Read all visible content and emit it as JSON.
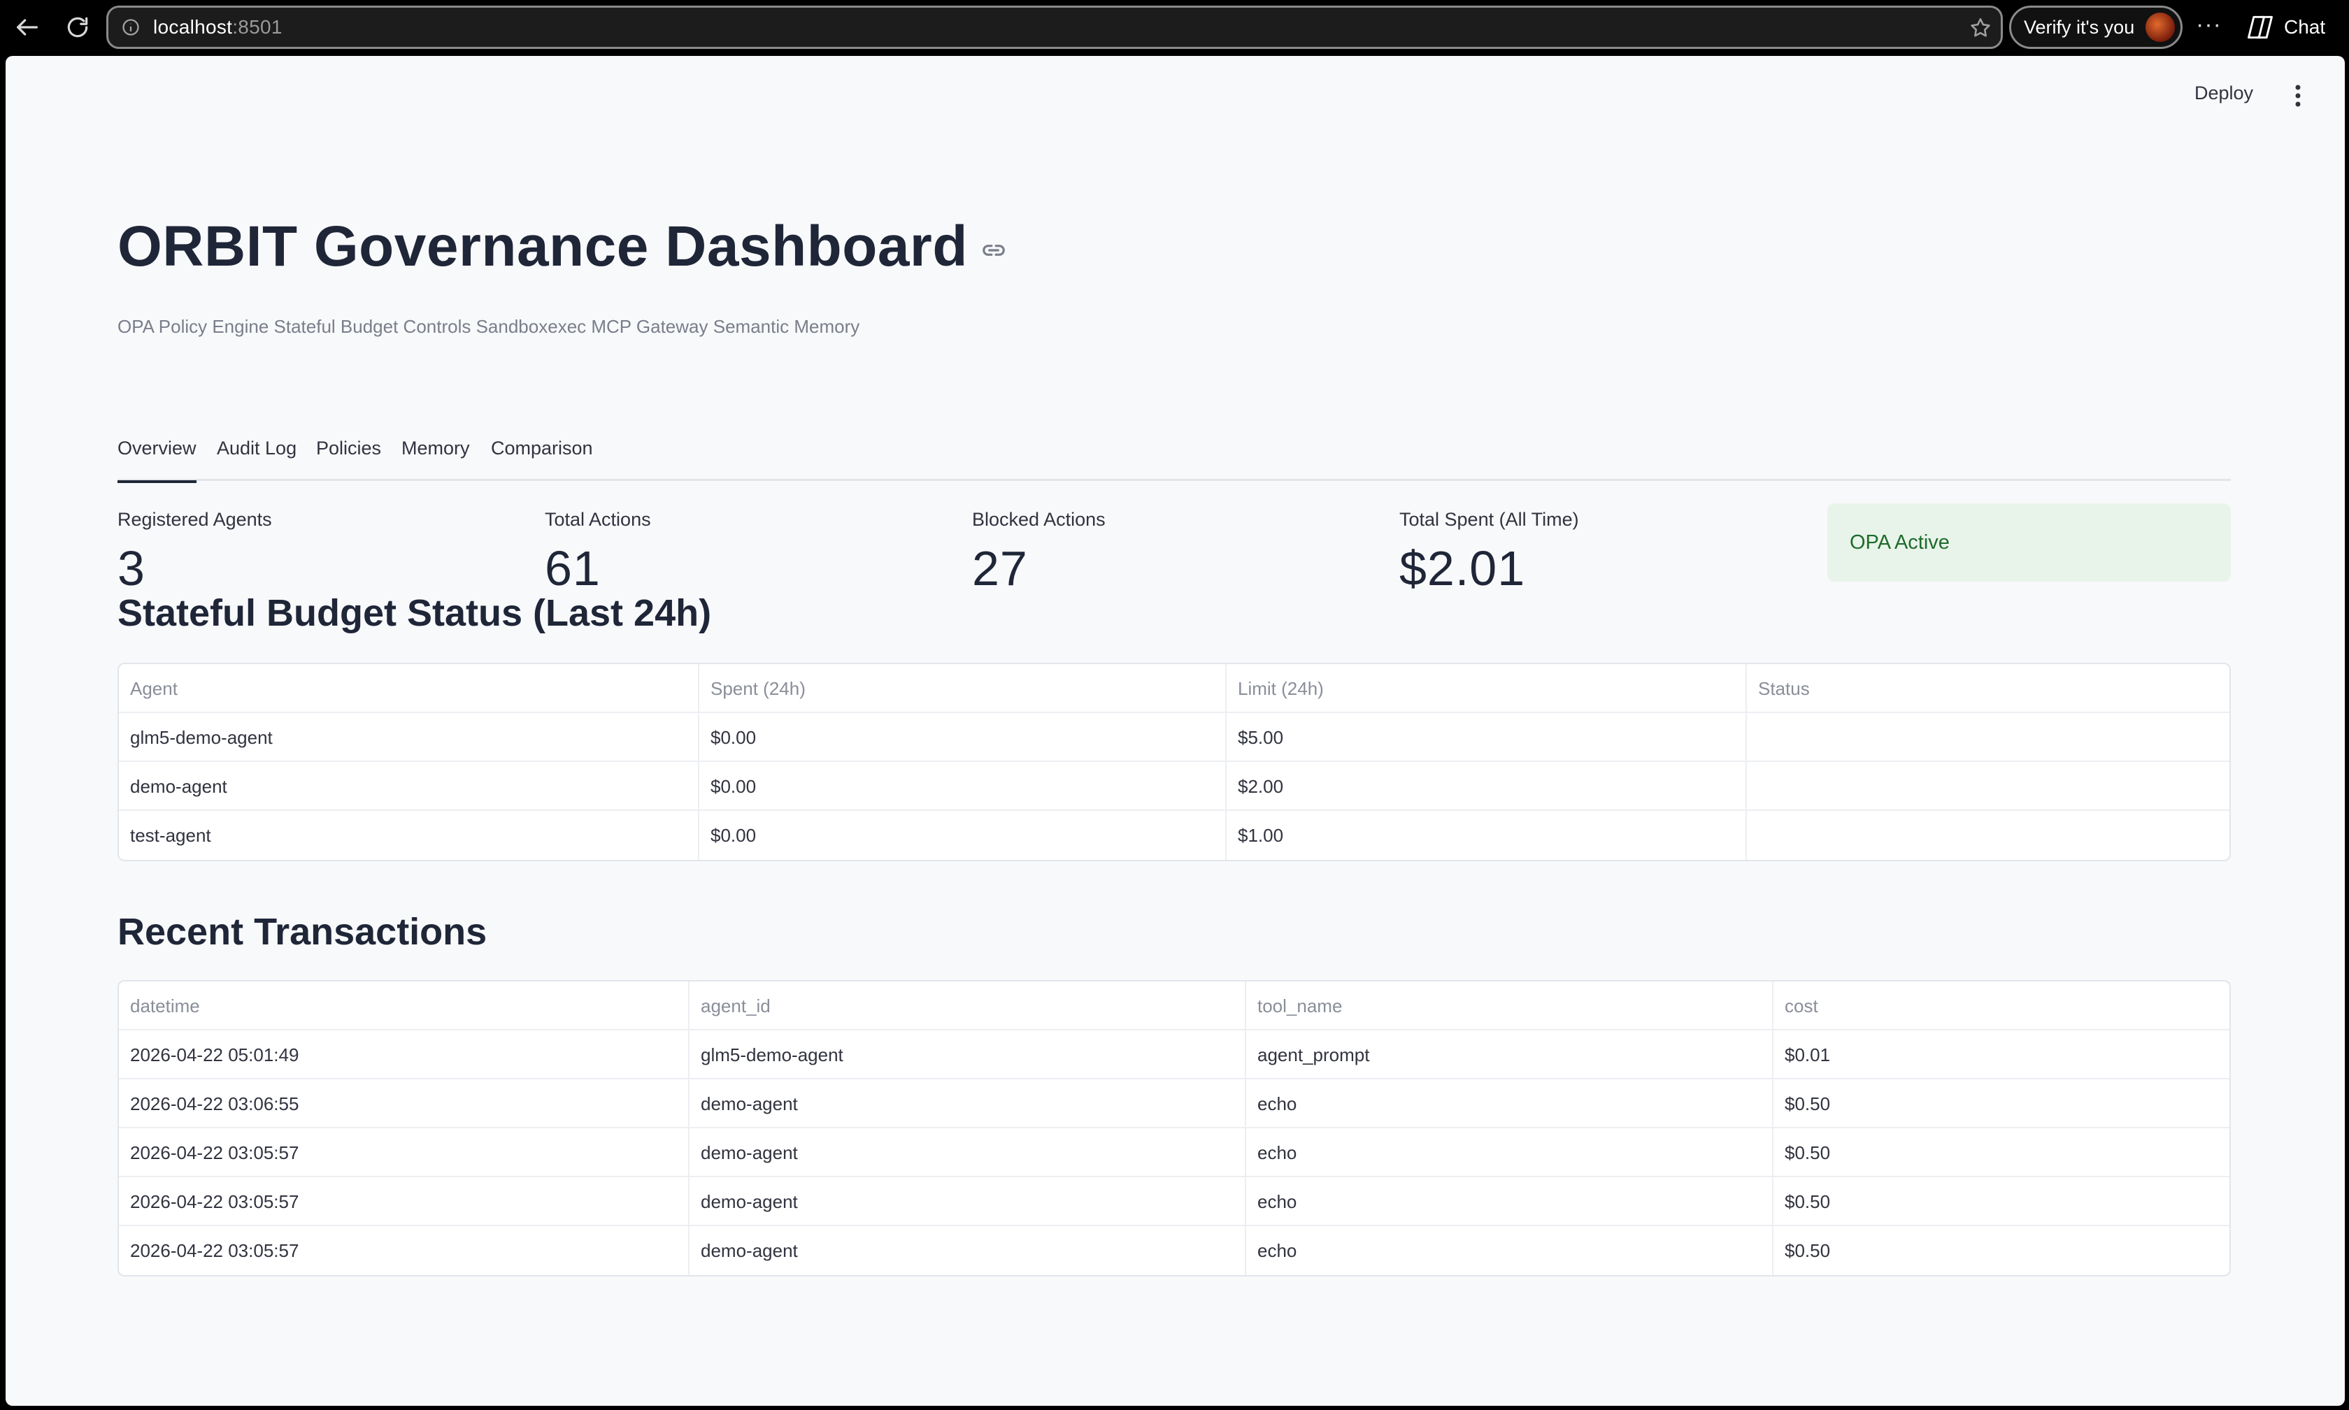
{
  "browser": {
    "url_host": "localhost",
    "url_port": ":8501",
    "verify_label": "Verify it's you",
    "more_label": "···",
    "chat_label": "Chat"
  },
  "toolbar": {
    "deploy_label": "Deploy"
  },
  "header": {
    "title": "ORBIT Governance Dashboard",
    "caption": "OPA Policy Engine Stateful Budget Controls Sandboxexec MCP Gateway Semantic Memory"
  },
  "tabs": [
    {
      "label": "Overview",
      "active": true
    },
    {
      "label": "Audit Log",
      "active": false
    },
    {
      "label": "Policies",
      "active": false
    },
    {
      "label": "Memory",
      "active": false
    },
    {
      "label": "Comparison",
      "active": false
    }
  ],
  "metrics": [
    {
      "label": "Registered Agents",
      "value": "3"
    },
    {
      "label": "Total Actions",
      "value": "61"
    },
    {
      "label": "Blocked Actions",
      "value": "27"
    },
    {
      "label": "Total Spent (All Time)",
      "value": "$2.01"
    }
  ],
  "opa_status": {
    "label": "OPA Active",
    "bg_color": "#e8f4ea",
    "text_color": "#1f6b2c"
  },
  "budget": {
    "heading": "Stateful Budget Status (Last 24h)",
    "columns": [
      "Agent",
      "Spent (24h)",
      "Limit (24h)",
      "Status"
    ],
    "rows": [
      [
        "glm5-demo-agent",
        "$0.00",
        "$5.00",
        ""
      ],
      [
        "demo-agent",
        "$0.00",
        "$2.00",
        ""
      ],
      [
        "test-agent",
        "$0.00",
        "$1.00",
        ""
      ]
    ]
  },
  "transactions": {
    "heading": "Recent Transactions",
    "columns": [
      "datetime",
      "agent_id",
      "tool_name",
      "cost"
    ],
    "rows": [
      [
        "2026-04-22 05:01:49",
        "glm5-demo-agent",
        "agent_prompt",
        "$0.01"
      ],
      [
        "2026-04-22 03:06:55",
        "demo-agent",
        "echo",
        "$0.50"
      ],
      [
        "2026-04-22 03:05:57",
        "demo-agent",
        "echo",
        "$0.50"
      ],
      [
        "2026-04-22 03:05:57",
        "demo-agent",
        "echo",
        "$0.50"
      ],
      [
        "2026-04-22 03:05:57",
        "demo-agent",
        "echo",
        "$0.50"
      ]
    ]
  }
}
